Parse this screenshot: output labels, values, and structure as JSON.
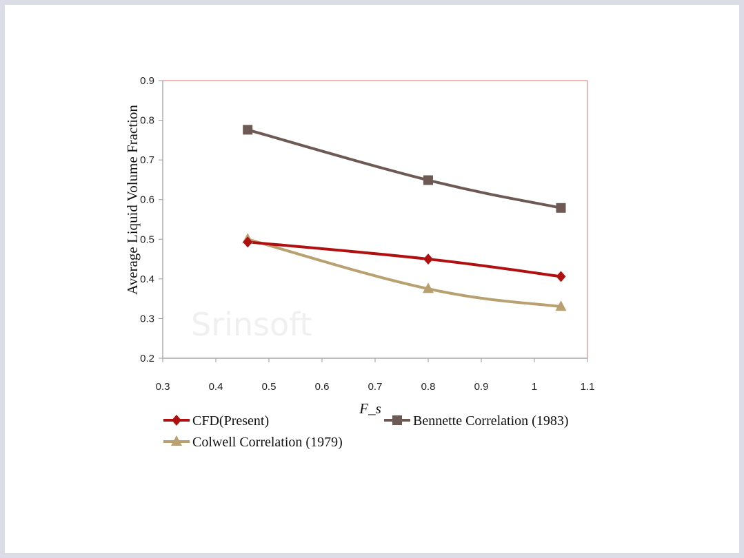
{
  "watermark": "Srinsoft",
  "chart_data": {
    "type": "line",
    "xlabel": "F_s",
    "ylabel": "Average Liquid Volume Fraction",
    "xlim": [
      0.3,
      1.1
    ],
    "ylim": [
      0.2,
      0.9
    ],
    "xticks": [
      0.3,
      0.4,
      0.5,
      0.6,
      0.7,
      0.8,
      0.9,
      1,
      1.1
    ],
    "yticks": [
      0.2,
      0.3,
      0.4,
      0.5,
      0.6,
      0.7,
      0.8,
      0.9
    ],
    "grid": false,
    "legend_position": "bottom",
    "series": [
      {
        "name": "CFD(Present)",
        "color": "#b01010",
        "marker": "diamond",
        "x": [
          0.46,
          0.8,
          1.05
        ],
        "y": [
          0.493,
          0.45,
          0.406
        ]
      },
      {
        "name": "Colwell Correlation (1979)",
        "color": "#b8a070",
        "marker": "triangle",
        "x": [
          0.46,
          0.8,
          1.05
        ],
        "y": [
          0.5,
          0.375,
          0.33
        ]
      },
      {
        "name": "Bennette Correlation (1983)",
        "color": "#6e5a54",
        "marker": "square",
        "x": [
          0.46,
          0.8,
          1.05
        ],
        "y": [
          0.776,
          0.649,
          0.579
        ]
      }
    ]
  }
}
